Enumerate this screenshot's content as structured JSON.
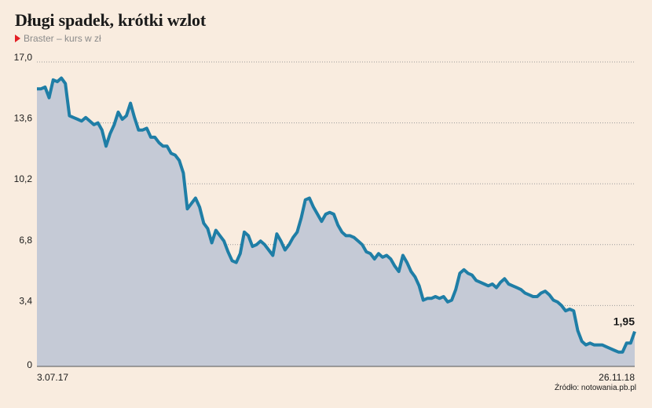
{
  "title": "Długi spadek, krótki wzlot",
  "subtitle": "Braster – kurs w zł",
  "source": "Źródło: notowania.pb.pl",
  "colors": {
    "line": "#1f7ea6",
    "area": "#c5cad6",
    "background": "#f9ecdf",
    "marker": "#e31e24",
    "grid": "#9a9a9a"
  },
  "chart_data": {
    "type": "area",
    "title": "Długi spadek, krótki wzlot",
    "subtitle": "Braster – kurs w zł",
    "ylim": [
      0,
      17
    ],
    "yticks": [
      "0",
      "3,4",
      "6,8",
      "10,2",
      "13,6",
      "17,0"
    ],
    "ytick_values": [
      0,
      3.4,
      6.8,
      10.2,
      13.6,
      17.0
    ],
    "x_range": [
      "3.07.17",
      "26.11.18"
    ],
    "xtick_labels": [
      "3.07.17",
      "26.11.18"
    ],
    "last_value_label": "1,95",
    "grid": "horizontal dotted",
    "series": [
      {
        "values": [
          15.5,
          15.5,
          15.6,
          15.0,
          16.0,
          15.9,
          16.1,
          15.8,
          14.0,
          13.9,
          13.8,
          13.7,
          13.9,
          13.7,
          13.5,
          13.6,
          13.2,
          12.3,
          13.0,
          13.5,
          14.2,
          13.8,
          14.0,
          14.7,
          13.9,
          13.2,
          13.2,
          13.3,
          12.8,
          12.8,
          12.5,
          12.3,
          12.3,
          11.9,
          11.8,
          11.5,
          10.8,
          8.8,
          9.1,
          9.4,
          8.9,
          8.0,
          7.7,
          6.9,
          7.6,
          7.3,
          7.0,
          6.4,
          5.9,
          5.8,
          6.3,
          7.5,
          7.3,
          6.7,
          6.8,
          7.0,
          6.8,
          6.5,
          6.2,
          7.4,
          7.0,
          6.5,
          6.8,
          7.2,
          7.5,
          8.3,
          9.3,
          9.4,
          8.9,
          8.5,
          8.1,
          8.5,
          8.6,
          8.5,
          7.9,
          7.5,
          7.3,
          7.3,
          7.2,
          7.0,
          6.8,
          6.4,
          6.3,
          6.0,
          6.3,
          6.1,
          6.2,
          6.0,
          5.6,
          5.3,
          6.2,
          5.8,
          5.3,
          5.0,
          4.5,
          3.7,
          3.8,
          3.8,
          3.9,
          3.8,
          3.9,
          3.6,
          3.7,
          4.3,
          5.2,
          5.4,
          5.2,
          5.1,
          4.8,
          4.7,
          4.6,
          4.5,
          4.6,
          4.4,
          4.7,
          4.9,
          4.6,
          4.5,
          4.4,
          4.3,
          4.1,
          4.0,
          3.9,
          3.9,
          4.1,
          4.2,
          4.0,
          3.7,
          3.6,
          3.4,
          3.1,
          3.2,
          3.1,
          2.0,
          1.4,
          1.2,
          1.3,
          1.2,
          1.2,
          1.2,
          1.1,
          1.0,
          0.9,
          0.8,
          0.8,
          1.3,
          1.3,
          1.95
        ]
      }
    ]
  }
}
